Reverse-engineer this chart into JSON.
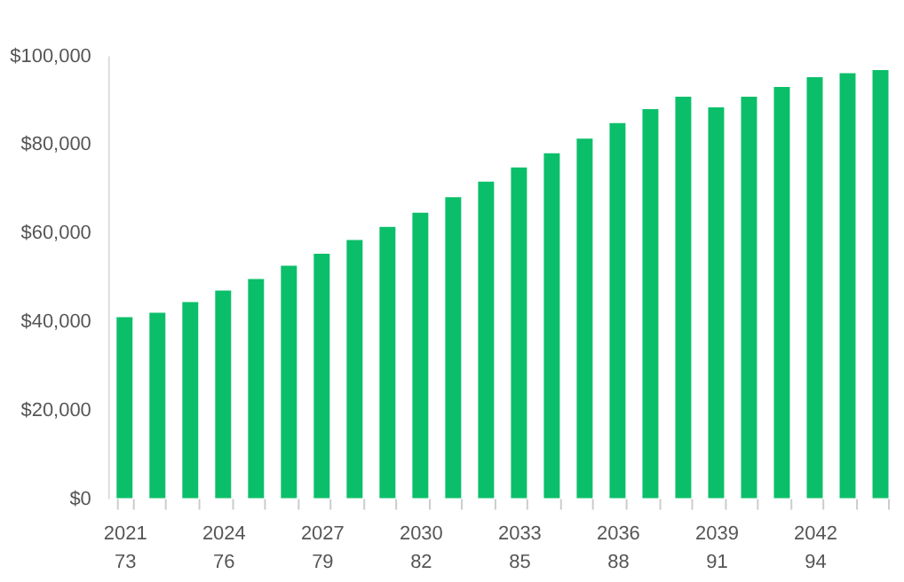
{
  "chart_data": {
    "type": "bar",
    "categories": [
      "2021\n73",
      null,
      null,
      "2024\n76",
      null,
      null,
      "2027\n79",
      null,
      null,
      "2030\n82",
      null,
      null,
      "2033\n85",
      null,
      null,
      "2036\n88",
      null,
      null,
      "2039\n91",
      null,
      null,
      "2042\n94",
      null,
      null
    ],
    "values": [
      40900,
      41900,
      44300,
      46900,
      49500,
      52500,
      55200,
      58300,
      61300,
      64500,
      68000,
      71500,
      74700,
      77900,
      81200,
      84700,
      87900,
      90700,
      88300,
      90700,
      92900,
      95100,
      96000,
      96700
    ],
    "color": "#0bbf6a",
    "ylim": [
      0,
      100000
    ],
    "yticks": [
      {
        "value": 0,
        "label": "$0"
      },
      {
        "value": 20000,
        "label": "$20,000"
      },
      {
        "value": 40000,
        "label": "$40,000"
      },
      {
        "value": 60000,
        "label": "$60,000"
      },
      {
        "value": 80000,
        "label": "$80,000"
      },
      {
        "value": 100000,
        "label": "$100,000"
      }
    ],
    "grid": false
  }
}
